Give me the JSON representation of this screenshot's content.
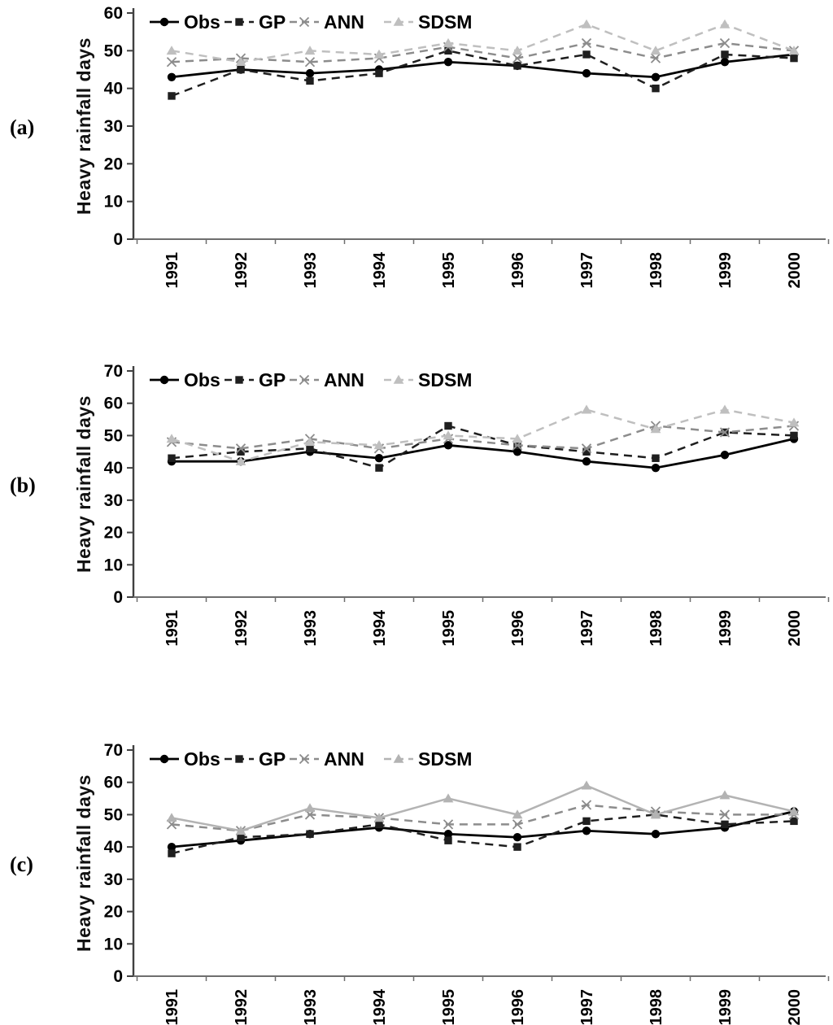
{
  "figure": {
    "panels": [
      {
        "label": "(a)",
        "ylabel": "Heavy rainfall days"
      },
      {
        "label": "(b)",
        "ylabel": "Heavy rainfall days"
      },
      {
        "label": "(c)",
        "ylabel": "Heavy rainfall days"
      }
    ]
  },
  "chart_data": [
    {
      "type": "line",
      "panel": "a",
      "ylabel": "Heavy rainfall days",
      "xlabel": "",
      "x": [
        "1991",
        "1992",
        "1993",
        "1994",
        "1995",
        "1996",
        "1997",
        "1998",
        "1999",
        "2000"
      ],
      "ylim": [
        0,
        60
      ],
      "yticks": [
        0,
        10,
        20,
        30,
        40,
        50,
        60
      ],
      "grid": false,
      "legend_position": "top-left-inside",
      "series": [
        {
          "name": "Obs",
          "marker": "circle",
          "line": "solid",
          "color": "#000000",
          "values": [
            43,
            45,
            44,
            45,
            47,
            46,
            44,
            43,
            47,
            49
          ]
        },
        {
          "name": "GP",
          "marker": "square",
          "line": "dashed",
          "color": "#1f1f1f",
          "values": [
            38,
            45,
            42,
            44,
            50,
            46,
            49,
            40,
            49,
            48
          ]
        },
        {
          "name": "ANN",
          "marker": "x",
          "line": "dashed",
          "color": "#8c8c8c",
          "values": [
            47,
            48,
            47,
            48,
            51,
            48,
            52,
            48,
            52,
            50
          ]
        },
        {
          "name": "SDSM",
          "marker": "triangle",
          "line": "dashed",
          "color": "#bfbfbf",
          "values": [
            50,
            47,
            50,
            49,
            52,
            50,
            57,
            50,
            57,
            50
          ]
        }
      ]
    },
    {
      "type": "line",
      "panel": "b",
      "ylabel": "Heavy rainfall days",
      "xlabel": "",
      "x": [
        "1991",
        "1992",
        "1993",
        "1994",
        "1995",
        "1996",
        "1997",
        "1998",
        "1999",
        "2000"
      ],
      "ylim": [
        0,
        70
      ],
      "yticks": [
        0,
        10,
        20,
        30,
        40,
        50,
        60,
        70
      ],
      "grid": false,
      "legend_position": "top-left-inside",
      "series": [
        {
          "name": "Obs",
          "marker": "circle",
          "line": "solid",
          "color": "#000000",
          "values": [
            42,
            42,
            45,
            43,
            47,
            45,
            42,
            40,
            44,
            49
          ]
        },
        {
          "name": "GP",
          "marker": "square",
          "line": "dashed",
          "color": "#1f1f1f",
          "values": [
            43,
            45,
            46,
            40,
            53,
            47,
            45,
            43,
            51,
            50
          ]
        },
        {
          "name": "ANN",
          "marker": "x",
          "line": "dashed",
          "color": "#8c8c8c",
          "values": [
            48,
            46,
            49,
            46,
            49,
            47,
            46,
            53,
            51,
            53
          ]
        },
        {
          "name": "SDSM",
          "marker": "triangle",
          "line": "dashed",
          "color": "#bfbfbf",
          "values": [
            49,
            42,
            48,
            47,
            50,
            49,
            58,
            52,
            58,
            54
          ]
        }
      ]
    },
    {
      "type": "line",
      "panel": "c",
      "ylabel": "Heavy rainfall days",
      "xlabel": "",
      "x": [
        "1991",
        "1992",
        "1993",
        "1994",
        "1995",
        "1996",
        "1997",
        "1998",
        "1999",
        "2000"
      ],
      "ylim": [
        0,
        70
      ],
      "yticks": [
        0,
        10,
        20,
        30,
        40,
        50,
        60,
        70
      ],
      "grid": false,
      "legend_position": "top-left-inside",
      "series": [
        {
          "name": "Obs",
          "marker": "circle",
          "line": "solid",
          "color": "#000000",
          "values": [
            40,
            42,
            44,
            46,
            44,
            43,
            45,
            44,
            46,
            51
          ]
        },
        {
          "name": "GP",
          "marker": "square",
          "line": "dashed",
          "color": "#1f1f1f",
          "values": [
            38,
            43,
            44,
            47,
            42,
            40,
            48,
            50,
            47,
            48
          ]
        },
        {
          "name": "ANN",
          "marker": "x",
          "line": "dashed",
          "color": "#8c8c8c",
          "values": [
            47,
            45,
            50,
            49,
            47,
            47,
            53,
            51,
            50,
            50
          ]
        },
        {
          "name": "SDSM",
          "marker": "triangle",
          "line": "solid",
          "color": "#b3b3b3",
          "values": [
            49,
            45,
            52,
            49,
            55,
            50,
            59,
            50,
            56,
            51
          ]
        }
      ]
    }
  ]
}
